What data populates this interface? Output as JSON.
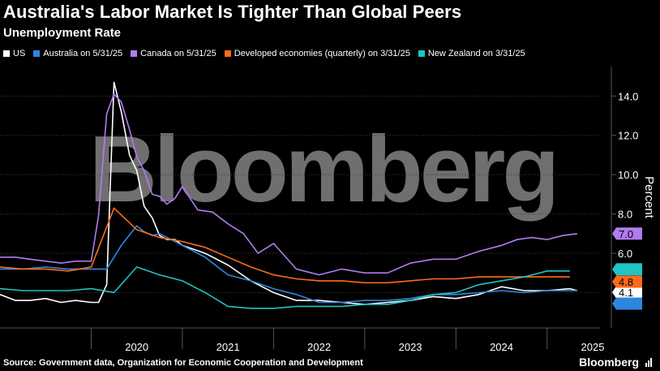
{
  "header": {
    "title": "Australia's Labor Market Is Tighter Than Global Peers",
    "subtitle": "Unemployment Rate"
  },
  "footer": {
    "source": "Source: Government data, Organization for Economic Cooperation and Development",
    "brand": "Bloomberg"
  },
  "watermark": "Bloomberg",
  "chart_data": {
    "type": "line",
    "title": "Australia's Labor Market Is Tighter Than Global Peers",
    "subtitle": "Unemployment Rate",
    "ylabel": "Percent",
    "xlabel": "",
    "ylim": [
      2.2,
      15.5
    ],
    "xlim": [
      2019.0,
      2025.58
    ],
    "yticks": [
      4.0,
      6.0,
      8.0,
      10.0,
      12.0,
      14.0
    ],
    "yticklabels": [
      "",
      "6.0",
      "8.0",
      "10.0",
      "12.0",
      "14.0"
    ],
    "xticks": [
      2020,
      2021,
      2022,
      2023,
      2024,
      2025
    ],
    "xticklabels": [
      "2020",
      "2021",
      "2022",
      "2023",
      "2024",
      "2025"
    ],
    "grid": true,
    "legend_position": "top",
    "series": [
      {
        "name": "US",
        "legend": "US",
        "color": "#ffffff",
        "end_label": "4.1",
        "x": [
          2019.0,
          2019.17,
          2019.33,
          2019.5,
          2019.67,
          2019.83,
          2020.0,
          2020.08,
          2020.17,
          2020.25,
          2020.33,
          2020.42,
          2020.5,
          2020.58,
          2020.67,
          2020.75,
          2020.83,
          2020.92,
          2021.0,
          2021.25,
          2021.5,
          2021.75,
          2022.0,
          2022.25,
          2022.5,
          2022.75,
          2023.0,
          2023.25,
          2023.5,
          2023.75,
          2024.0,
          2024.25,
          2024.5,
          2024.75,
          2025.0,
          2025.25,
          2025.33
        ],
        "y": [
          3.9,
          3.6,
          3.6,
          3.7,
          3.5,
          3.6,
          3.5,
          3.5,
          4.4,
          14.7,
          13.2,
          11.0,
          10.2,
          8.4,
          7.8,
          6.9,
          6.7,
          6.7,
          6.4,
          6.0,
          5.4,
          4.6,
          4.0,
          3.6,
          3.6,
          3.5,
          3.4,
          3.5,
          3.6,
          3.8,
          3.7,
          3.9,
          4.3,
          4.1,
          4.1,
          4.2,
          4.1
        ]
      },
      {
        "name": "Australia",
        "legend": "Australia on 5/31/25",
        "color": "#2e86de",
        "end_label": "",
        "x": [
          2019.0,
          2019.25,
          2019.5,
          2019.75,
          2020.0,
          2020.17,
          2020.33,
          2020.5,
          2020.58,
          2020.67,
          2020.75,
          2020.92,
          2021.0,
          2021.25,
          2021.5,
          2021.75,
          2022.0,
          2022.25,
          2022.5,
          2022.75,
          2023.0,
          2023.25,
          2023.5,
          2023.75,
          2024.0,
          2024.25,
          2024.5,
          2024.75,
          2025.0,
          2025.25,
          2025.33
        ],
        "y": [
          5.2,
          5.2,
          5.3,
          5.2,
          5.2,
          5.2,
          6.4,
          7.4,
          7.1,
          6.9,
          7.0,
          6.6,
          6.4,
          5.8,
          4.9,
          4.6,
          4.2,
          3.9,
          3.5,
          3.5,
          3.6,
          3.6,
          3.7,
          3.9,
          3.9,
          4.0,
          4.1,
          4.0,
          4.1,
          4.1,
          4.1
        ]
      },
      {
        "name": "Canada",
        "legend": "Canada on 5/31/25",
        "color": "#b07cf0",
        "end_label": "7.0",
        "x": [
          2019.0,
          2019.17,
          2019.33,
          2019.5,
          2019.67,
          2019.83,
          2020.0,
          2020.08,
          2020.17,
          2020.25,
          2020.33,
          2020.42,
          2020.5,
          2020.58,
          2020.67,
          2020.75,
          2020.83,
          2020.92,
          2021.0,
          2021.17,
          2021.33,
          2021.5,
          2021.67,
          2021.83,
          2022.0,
          2022.25,
          2022.5,
          2022.75,
          2023.0,
          2023.25,
          2023.5,
          2023.75,
          2024.0,
          2024.25,
          2024.5,
          2024.67,
          2024.83,
          2025.0,
          2025.17,
          2025.33
        ],
        "y": [
          5.8,
          5.8,
          5.7,
          5.6,
          5.5,
          5.6,
          5.6,
          7.9,
          13.1,
          14.1,
          13.7,
          12.3,
          10.9,
          10.2,
          9.0,
          8.9,
          8.5,
          8.8,
          9.4,
          8.2,
          8.1,
          7.5,
          7.0,
          6.0,
          6.5,
          5.2,
          4.9,
          5.2,
          5.0,
          5.0,
          5.5,
          5.7,
          5.7,
          6.1,
          6.4,
          6.7,
          6.8,
          6.7,
          6.9,
          7.0
        ]
      },
      {
        "name": "Developed economies (quarterly)",
        "legend": "Developed economies (quarterly) on 3/31/25",
        "color": "#ff6a1a",
        "end_label": "4.8",
        "x": [
          2019.0,
          2019.25,
          2019.5,
          2019.75,
          2020.0,
          2020.25,
          2020.5,
          2020.75,
          2021.0,
          2021.25,
          2021.5,
          2021.75,
          2022.0,
          2022.25,
          2022.5,
          2022.75,
          2023.0,
          2023.25,
          2023.5,
          2023.75,
          2024.0,
          2024.25,
          2024.5,
          2024.75,
          2025.0,
          2025.25
        ],
        "y": [
          5.3,
          5.2,
          5.2,
          5.1,
          5.3,
          8.3,
          7.2,
          6.8,
          6.6,
          6.3,
          5.8,
          5.3,
          4.9,
          4.7,
          4.6,
          4.6,
          4.5,
          4.5,
          4.6,
          4.7,
          4.7,
          4.8,
          4.8,
          4.8,
          4.8,
          4.8
        ]
      },
      {
        "name": "New Zealand",
        "legend": "New Zealand on 3/31/25",
        "color": "#1fc4c4",
        "end_label": "",
        "x": [
          2019.0,
          2019.25,
          2019.5,
          2019.75,
          2020.0,
          2020.25,
          2020.5,
          2020.75,
          2021.0,
          2021.25,
          2021.5,
          2021.75,
          2022.0,
          2022.25,
          2022.5,
          2022.75,
          2023.0,
          2023.25,
          2023.5,
          2023.75,
          2024.0,
          2024.25,
          2024.5,
          2024.75,
          2025.0,
          2025.25
        ],
        "y": [
          4.2,
          4.1,
          4.1,
          4.1,
          4.2,
          4.0,
          5.3,
          4.9,
          4.6,
          4.0,
          3.3,
          3.2,
          3.2,
          3.3,
          3.3,
          3.3,
          3.4,
          3.4,
          3.6,
          3.9,
          4.0,
          4.4,
          4.6,
          4.8,
          5.1,
          5.1
        ]
      }
    ]
  }
}
